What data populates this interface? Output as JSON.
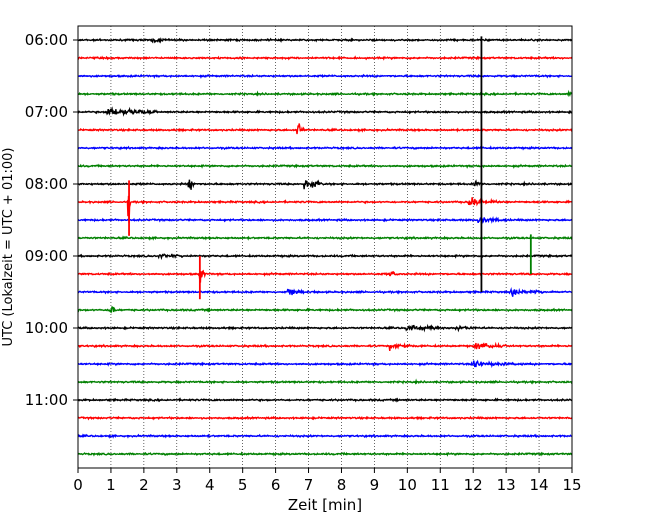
{
  "chart_data": {
    "type": "line",
    "title": "",
    "xlabel": "Zeit  [min]",
    "ylabel": "UTC (Lokalzeit = UTC + 01:00)",
    "xlim": [
      0,
      15
    ],
    "xticks": [
      "0",
      "1",
      "2",
      "3",
      "4",
      "5",
      "6",
      "7",
      "8",
      "9",
      "10",
      "11",
      "12",
      "13",
      "14",
      "15"
    ],
    "yticks": [
      "06:00",
      "07:00",
      "08:00",
      "09:00",
      "10:00",
      "11:00"
    ],
    "grid": "vertical dotted at each minute",
    "trace_colors": [
      "#000000",
      "#ff0000",
      "#0000ff",
      "#008000"
    ],
    "traces": [
      {
        "start": "06:00",
        "color": "#000000"
      },
      {
        "start": "06:15",
        "color": "#ff0000"
      },
      {
        "start": "06:30",
        "color": "#0000ff"
      },
      {
        "start": "06:45",
        "color": "#008000"
      },
      {
        "start": "07:00",
        "color": "#000000"
      },
      {
        "start": "07:15",
        "color": "#ff0000"
      },
      {
        "start": "07:30",
        "color": "#0000ff"
      },
      {
        "start": "07:45",
        "color": "#008000"
      },
      {
        "start": "08:00",
        "color": "#000000"
      },
      {
        "start": "08:15",
        "color": "#ff0000"
      },
      {
        "start": "08:30",
        "color": "#0000ff"
      },
      {
        "start": "08:45",
        "color": "#008000"
      },
      {
        "start": "09:00",
        "color": "#000000"
      },
      {
        "start": "09:15",
        "color": "#ff0000"
      },
      {
        "start": "09:30",
        "color": "#0000ff"
      },
      {
        "start": "09:45",
        "color": "#008000"
      },
      {
        "start": "10:00",
        "color": "#000000"
      },
      {
        "start": "10:15",
        "color": "#ff0000"
      },
      {
        "start": "10:30",
        "color": "#0000ff"
      },
      {
        "start": "10:45",
        "color": "#008000"
      },
      {
        "start": "11:00",
        "color": "#000000"
      },
      {
        "start": "11:15",
        "color": "#ff0000"
      },
      {
        "start": "11:30",
        "color": "#0000ff"
      },
      {
        "start": "11:45",
        "color": "#008000"
      }
    ],
    "events": [
      {
        "trace": 0,
        "minute": 2.3,
        "amp": 0.25,
        "dur": 0.5
      },
      {
        "trace": 3,
        "minute": 14.9,
        "amp": 0.3,
        "dur": 0.2
      },
      {
        "trace": 4,
        "minute": 0.9,
        "amp": 0.45,
        "dur": 1.6
      },
      {
        "trace": 4,
        "minute": 1.6,
        "amp": 0.25,
        "dur": 0.6
      },
      {
        "trace": 5,
        "minute": 6.7,
        "amp": 1.0,
        "dur": 0.15
      },
      {
        "trace": 8,
        "minute": 3.4,
        "amp": 0.55,
        "dur": 0.2
      },
      {
        "trace": 8,
        "minute": 6.9,
        "amp": 0.45,
        "dur": 0.4
      },
      {
        "trace": 8,
        "minute": 7.15,
        "amp": 0.45,
        "dur": 0.3
      },
      {
        "trace": 8,
        "minute": 12.1,
        "amp": 0.4,
        "dur": 0.3
      },
      {
        "trace": 9,
        "minute": 1.55,
        "amp": 2.5,
        "dur": 0.05
      },
      {
        "trace": 9,
        "minute": 11.9,
        "amp": 0.55,
        "dur": 0.45
      },
      {
        "trace": 9,
        "minute": 12.5,
        "amp": 0.3,
        "dur": 0.5
      },
      {
        "trace": 10,
        "minute": 12.2,
        "amp": 0.3,
        "dur": 0.9
      },
      {
        "trace": 12,
        "minute": 2.5,
        "amp": 0.25,
        "dur": 0.9
      },
      {
        "trace": 13,
        "minute": 3.7,
        "amp": 1.0,
        "dur": 0.2
      },
      {
        "trace": 13,
        "minute": 9.5,
        "amp": 0.35,
        "dur": 0.3
      },
      {
        "trace": 14,
        "minute": 6.4,
        "amp": 0.3,
        "dur": 0.8
      },
      {
        "trace": 14,
        "minute": 13.2,
        "amp": 0.3,
        "dur": 1.4
      },
      {
        "trace": 15,
        "minute": 1.0,
        "amp": 0.8,
        "dur": 0.15
      },
      {
        "trace": 16,
        "minute": 10.0,
        "amp": 0.3,
        "dur": 1.6
      },
      {
        "trace": 16,
        "minute": 11.5,
        "amp": 0.25,
        "dur": 0.8
      },
      {
        "trace": 17,
        "minute": 9.5,
        "amp": 0.35,
        "dur": 0.9
      },
      {
        "trace": 17,
        "minute": 12.1,
        "amp": 0.35,
        "dur": 1.1
      },
      {
        "trace": 18,
        "minute": 12.0,
        "amp": 0.35,
        "dur": 1.8
      }
    ],
    "long_spikes": [
      {
        "minute": 12.25,
        "from_hour": 5.95,
        "to_hour": 9.5,
        "color": "#000000"
      },
      {
        "minute": 13.75,
        "from_hour": 8.7,
        "to_hour": 9.25,
        "color": "#008000"
      },
      {
        "minute": 1.55,
        "from_hour": 7.95,
        "to_hour": 8.72,
        "color": "#ff0000"
      },
      {
        "minute": 3.7,
        "from_hour": 9.0,
        "to_hour": 9.6,
        "color": "#ff0000"
      }
    ]
  }
}
